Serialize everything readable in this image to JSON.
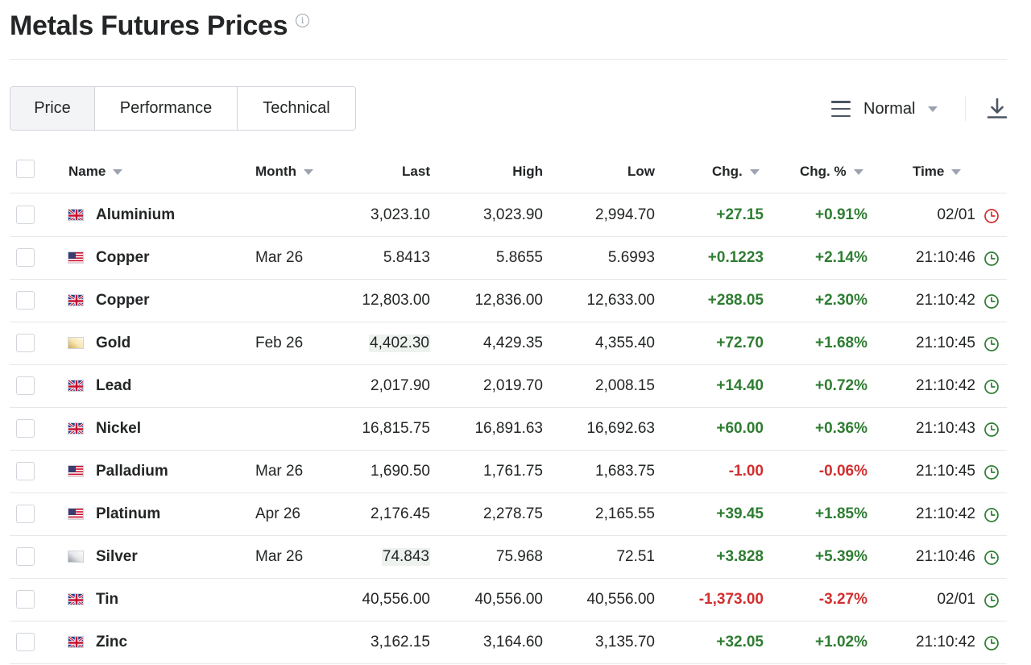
{
  "page": {
    "title": "Metals Futures Prices",
    "info_icon": "info-icon"
  },
  "tabs": [
    {
      "label": "Price",
      "active": true
    },
    {
      "label": "Performance",
      "active": false
    },
    {
      "label": "Technical",
      "active": false
    }
  ],
  "toolbar": {
    "view_label": "Normal",
    "view_icon": "hamburger-icon",
    "download_icon": "download-icon"
  },
  "columns": {
    "name": "Name",
    "month": "Month",
    "last": "Last",
    "high": "High",
    "low": "Low",
    "chg": "Chg.",
    "chg_pct": "Chg. %",
    "time": "Time"
  },
  "colors": {
    "positive": "#2e7d32",
    "negative": "#d32f2f",
    "clock_open": "#2e7d32",
    "clock_closed": "#d32f2f"
  },
  "rows": [
    {
      "flag": "uk",
      "name": "Aluminium",
      "month": "",
      "last": "3,023.10",
      "high": "3,023.90",
      "low": "2,994.70",
      "chg": "+27.15",
      "chg_pct": "+0.91%",
      "time": "02/01",
      "direction": "up",
      "clock": "red",
      "highlight_last": false
    },
    {
      "flag": "us",
      "name": "Copper",
      "month": "Mar 26",
      "last": "5.8413",
      "high": "5.8655",
      "low": "5.6993",
      "chg": "+0.1223",
      "chg_pct": "+2.14%",
      "time": "21:10:46",
      "direction": "up",
      "clock": "green",
      "highlight_last": false
    },
    {
      "flag": "uk",
      "name": "Copper",
      "month": "",
      "last": "12,803.00",
      "high": "12,836.00",
      "low": "12,633.00",
      "chg": "+288.05",
      "chg_pct": "+2.30%",
      "time": "21:10:42",
      "direction": "up",
      "clock": "green",
      "highlight_last": false
    },
    {
      "flag": "gold",
      "name": "Gold",
      "month": "Feb 26",
      "last": "4,402.30",
      "high": "4,429.35",
      "low": "4,355.40",
      "chg": "+72.70",
      "chg_pct": "+1.68%",
      "time": "21:10:45",
      "direction": "up",
      "clock": "green",
      "highlight_last": true
    },
    {
      "flag": "uk",
      "name": "Lead",
      "month": "",
      "last": "2,017.90",
      "high": "2,019.70",
      "low": "2,008.15",
      "chg": "+14.40",
      "chg_pct": "+0.72%",
      "time": "21:10:42",
      "direction": "up",
      "clock": "green",
      "highlight_last": false
    },
    {
      "flag": "uk",
      "name": "Nickel",
      "month": "",
      "last": "16,815.75",
      "high": "16,891.63",
      "low": "16,692.63",
      "chg": "+60.00",
      "chg_pct": "+0.36%",
      "time": "21:10:43",
      "direction": "up",
      "clock": "green",
      "highlight_last": false
    },
    {
      "flag": "us",
      "name": "Palladium",
      "month": "Mar 26",
      "last": "1,690.50",
      "high": "1,761.75",
      "low": "1,683.75",
      "chg": "-1.00",
      "chg_pct": "-0.06%",
      "time": "21:10:45",
      "direction": "down",
      "clock": "green",
      "highlight_last": false
    },
    {
      "flag": "us",
      "name": "Platinum",
      "month": "Apr 26",
      "last": "2,176.45",
      "high": "2,278.75",
      "low": "2,165.55",
      "chg": "+39.45",
      "chg_pct": "+1.85%",
      "time": "21:10:42",
      "direction": "up",
      "clock": "green",
      "highlight_last": false
    },
    {
      "flag": "silver",
      "name": "Silver",
      "month": "Mar 26",
      "last": "74.843",
      "high": "75.968",
      "low": "72.51",
      "chg": "+3.828",
      "chg_pct": "+5.39%",
      "time": "21:10:46",
      "direction": "up",
      "clock": "green",
      "highlight_last": true
    },
    {
      "flag": "uk",
      "name": "Tin",
      "month": "",
      "last": "40,556.00",
      "high": "40,556.00",
      "low": "40,556.00",
      "chg": "-1,373.00",
      "chg_pct": "-3.27%",
      "time": "02/01",
      "direction": "down",
      "clock": "green",
      "highlight_last": false
    },
    {
      "flag": "uk",
      "name": "Zinc",
      "month": "",
      "last": "3,162.15",
      "high": "3,164.60",
      "low": "3,135.70",
      "chg": "+32.05",
      "chg_pct": "+1.02%",
      "time": "21:10:42",
      "direction": "up",
      "clock": "green",
      "highlight_last": false
    }
  ]
}
